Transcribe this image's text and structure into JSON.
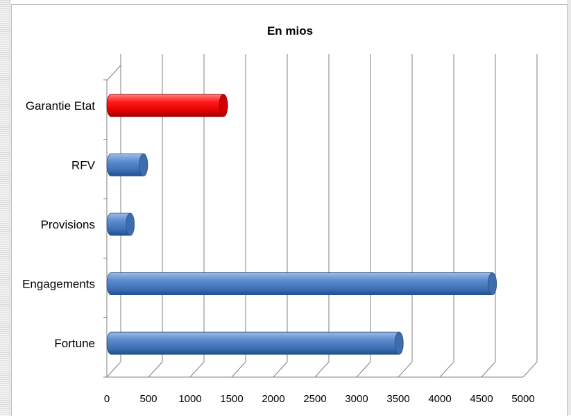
{
  "chart_data": {
    "type": "bar",
    "orientation": "horizontal",
    "title": "En mios",
    "categories": [
      "Garantie Etat",
      "RFV",
      "Provisions",
      "Engagements",
      "Fortune"
    ],
    "values": [
      1350,
      390,
      230,
      4580,
      3460
    ],
    "bar_colors": [
      "#e00000",
      "#4a7ebb",
      "#4a7ebb",
      "#4a7ebb",
      "#4a7ebb"
    ],
    "xlim": [
      0,
      5000
    ],
    "x_ticks": [
      "0",
      "500",
      "1000",
      "1500",
      "2000",
      "2500",
      "3000",
      "3500",
      "4000",
      "4500",
      "5000"
    ],
    "grid": true,
    "style": "3d-cylinder"
  }
}
